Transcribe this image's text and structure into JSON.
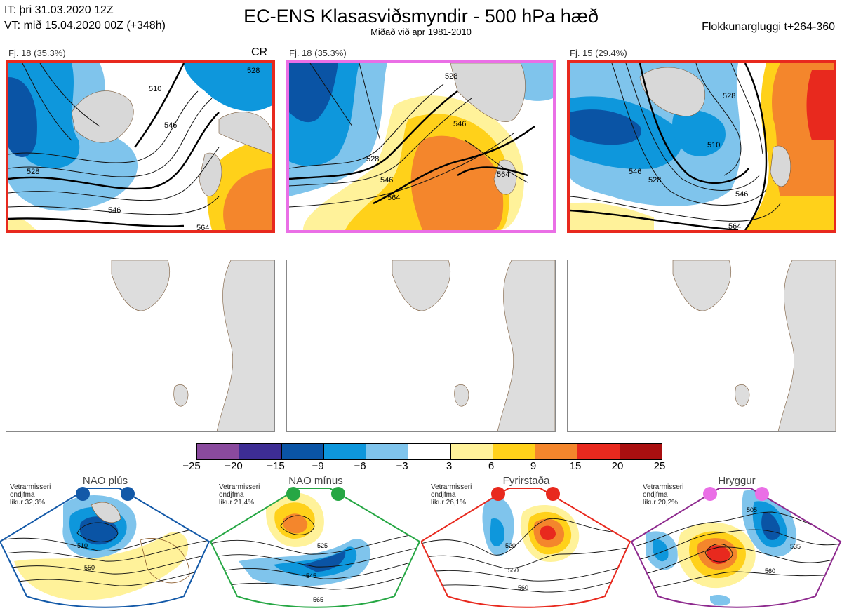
{
  "header": {
    "init_line": "IT: þri 31.03.2020 12Z",
    "valid_line": "VT: mið 15.04.2020 00Z  (+348h)",
    "title": "EC-ENS Klasasviðsmyndir - 500 hPa hæð",
    "subtitle": "Miðað við apr 1981-2010",
    "window": "Flokkunargluggi t+264-360"
  },
  "clusters": [
    {
      "label": "Fj. 18 (35.3%)",
      "tag": "CR",
      "frame_color": "#e8291e",
      "contours": [
        "528",
        "546",
        "564",
        "510",
        "546",
        "528"
      ]
    },
    {
      "label": "Fj. 18 (35.3%)",
      "tag": "",
      "frame_color": "#ea6fe6",
      "contours": [
        "528",
        "546",
        "564",
        "546",
        "564",
        "528"
      ]
    },
    {
      "label": "Fj. 15 (29.4%)",
      "tag": "",
      "frame_color": "#e8291e",
      "contours": [
        "510",
        "528",
        "546",
        "564",
        "528",
        "546"
      ]
    }
  ],
  "colorbar": {
    "colors": [
      "#8a4a9e",
      "#3d2d94",
      "#0a54a5",
      "#0e97dc",
      "#7fc4ec",
      "#ffffff",
      "#fff29a",
      "#ffd11a",
      "#f4862c",
      "#e8291e",
      "#a90f10"
    ],
    "labels": [
      "−25",
      "−20",
      "−15",
      "−9",
      "−6",
      "−3",
      "3",
      "6",
      "9",
      "15",
      "20",
      "25"
    ]
  },
  "regimes": [
    {
      "title": "NAO plús",
      "info": [
        "Vetrarmisseri",
        "ondjfma",
        "líkur 32,3%"
      ],
      "color": "#1359a8",
      "contours": [
        "510",
        "550"
      ]
    },
    {
      "title": "NAO mínus",
      "info": [
        "Vetrarmisseri",
        "ondjfma",
        "líkur 21,4%"
      ],
      "color": "#26a744",
      "contours": [
        "525",
        "545",
        "565"
      ]
    },
    {
      "title": "Fyrirstaða",
      "info": [
        "Vetrarmisseri",
        "ondjfma",
        "líkur 26,1%"
      ],
      "color": "#e8291e",
      "contours": [
        "520",
        "550",
        "560"
      ]
    },
    {
      "title": "Hryggur",
      "info": [
        "Vetrarmisseri",
        "ondjfma",
        "líkur 20,2%"
      ],
      "color": "#ea6fe6",
      "contours": [
        "505",
        "535",
        "560"
      ]
    }
  ]
}
